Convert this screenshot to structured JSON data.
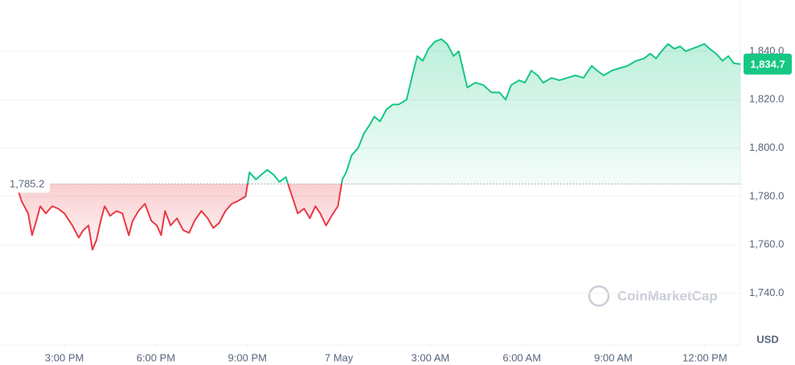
{
  "chart_data": {
    "type": "line",
    "x": [
      13.02,
      13.15,
      13.47,
      13.6,
      13.81,
      13.94,
      14.08,
      14.21,
      14.39,
      14.6,
      14.79,
      15.0,
      15.26,
      15.47,
      15.61,
      15.79,
      15.92,
      16.05,
      16.19,
      16.32,
      16.5,
      16.71,
      16.9,
      17.11,
      17.24,
      17.43,
      17.64,
      17.85,
      18.03,
      18.17,
      18.3,
      18.48,
      18.69,
      18.9,
      19.09,
      19.27,
      19.49,
      19.7,
      19.88,
      20.07,
      20.28,
      20.49,
      20.67,
      20.94,
      21.07,
      21.28,
      21.46,
      21.65,
      21.86,
      22.05,
      22.26,
      22.44,
      22.65,
      22.86,
      23.05,
      23.23,
      23.39,
      23.58,
      23.76,
      23.97,
      24.11,
      24.24,
      24.42,
      24.63,
      24.82,
      25.03,
      25.16,
      25.35,
      25.56,
      25.77,
      25.96,
      26.22,
      26.41,
      26.57,
      26.75,
      26.94,
      27.15,
      27.36,
      27.55,
      27.76,
      27.93,
      28.08,
      28.21,
      28.47,
      28.74,
      29.0,
      29.26,
      29.47,
      29.65,
      29.91,
      30.1,
      30.31,
      30.52,
      30.7,
      30.97,
      31.23,
      31.49,
      31.76,
      32.02,
      32.29,
      32.47,
      32.68,
      32.95,
      33.21,
      33.47,
      33.74,
      34.0,
      34.21,
      34.4,
      34.58,
      34.79,
      35.0,
      35.19,
      35.37,
      35.58,
      35.79,
      35.98,
      36.16,
      36.37,
      36.58,
      36.77,
      36.95,
      37.17
    ],
    "series": [
      {
        "name": "USD",
        "color_up": "#16c784",
        "color_down": "#ea3943",
        "values": [
          1785.2,
          1788,
          1783,
          1778,
          1773,
          1764,
          1770,
          1776,
          1773,
          1776,
          1775,
          1773,
          1768,
          1763,
          1766,
          1768,
          1758,
          1762,
          1770,
          1776,
          1772,
          1774,
          1773,
          1764,
          1770,
          1774,
          1777,
          1770,
          1768,
          1764,
          1774,
          1768,
          1771,
          1766,
          1765,
          1770,
          1774,
          1771,
          1767,
          1769,
          1774,
          1777,
          1778,
          1780,
          1790,
          1787,
          1789,
          1791,
          1789,
          1786,
          1788,
          1781,
          1773,
          1775,
          1771,
          1776,
          1773,
          1768,
          1772,
          1776,
          1787,
          1790,
          1797,
          1800,
          1806,
          1810,
          1813,
          1811,
          1816,
          1818,
          1818,
          1820,
          1830,
          1838,
          1836,
          1841,
          1844,
          1845,
          1843,
          1838,
          1840,
          1832,
          1825,
          1827,
          1826,
          1823,
          1823,
          1820,
          1826,
          1828,
          1827,
          1832,
          1830,
          1827,
          1829,
          1828,
          1829,
          1830,
          1829,
          1834,
          1832,
          1830,
          1832,
          1833,
          1834,
          1836,
          1837,
          1839,
          1837,
          1840,
          1843,
          1841,
          1842,
          1840,
          1841,
          1842,
          1843,
          1841,
          1839,
          1836,
          1838,
          1835,
          1834.7
        ]
      }
    ],
    "baseline": {
      "value": 1785.2,
      "label": "1,785.2"
    },
    "last_price": {
      "value": 1834.7,
      "label": "1,834.7"
    },
    "xlim": [
      13.02,
      37.19
    ],
    "xticks": [
      {
        "value": 15,
        "label": "3:00 PM"
      },
      {
        "value": 18,
        "label": "6:00 PM"
      },
      {
        "value": 21,
        "label": "9:00 PM"
      },
      {
        "value": 24,
        "label": "7 May"
      },
      {
        "value": 27,
        "label": "3:00 AM"
      },
      {
        "value": 30,
        "label": "6:00 AM"
      },
      {
        "value": 33,
        "label": "9:00 AM"
      },
      {
        "value": 36,
        "label": "12:00 PM"
      }
    ],
    "ylim": [
      1720,
      1860
    ],
    "yticks": [
      {
        "value": 1740,
        "label": "1,740.0"
      },
      {
        "value": 1760,
        "label": "1,760.0"
      },
      {
        "value": 1780,
        "label": "1,780.0"
      },
      {
        "value": 1800,
        "label": "1,800.0"
      },
      {
        "value": 1820,
        "label": "1,820.0"
      },
      {
        "value": 1840,
        "label": "1,840.0"
      }
    ],
    "currency_label": "USD",
    "watermark": "CoinMarketCap",
    "grid": true
  }
}
